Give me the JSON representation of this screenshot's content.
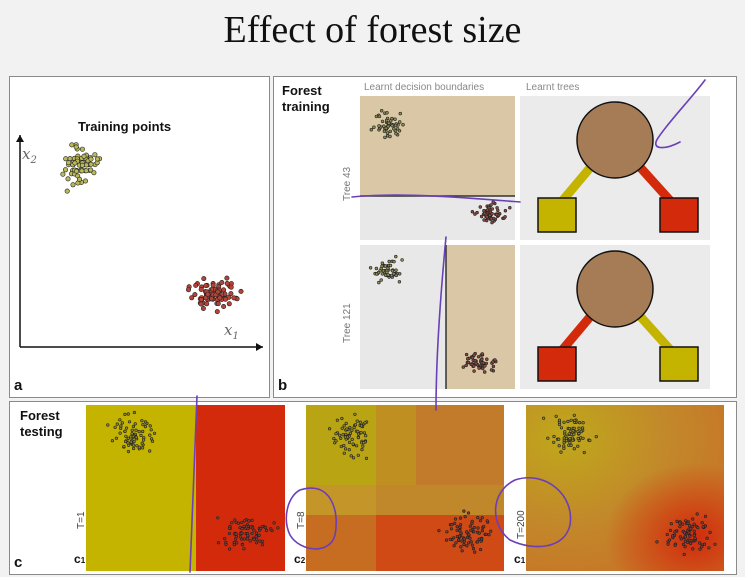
{
  "title": "Effect of forest size",
  "panel_a": {
    "label": "a",
    "heading": "Training points",
    "x_axis": "x",
    "x_sub": "1",
    "y_axis": "x",
    "y_sub": "2"
  },
  "panel_b": {
    "label": "b",
    "section": "Forest training",
    "col1": "Learnt decision boundaries",
    "col2": "Learnt trees",
    "row1": "Tree 43",
    "row2": "Tree 121"
  },
  "panel_c": {
    "label": "c",
    "section": "Forest testing",
    "t1": "T=1",
    "t2": "T=8",
    "t3": "T=200",
    "c_main": "c",
    "c1_sub": "1",
    "c2_sub": "2"
  },
  "colors": {
    "yellow": "#c4b400",
    "red": "#d42a0c",
    "tan": "#d9c7a6",
    "node": "#a67c56"
  }
}
